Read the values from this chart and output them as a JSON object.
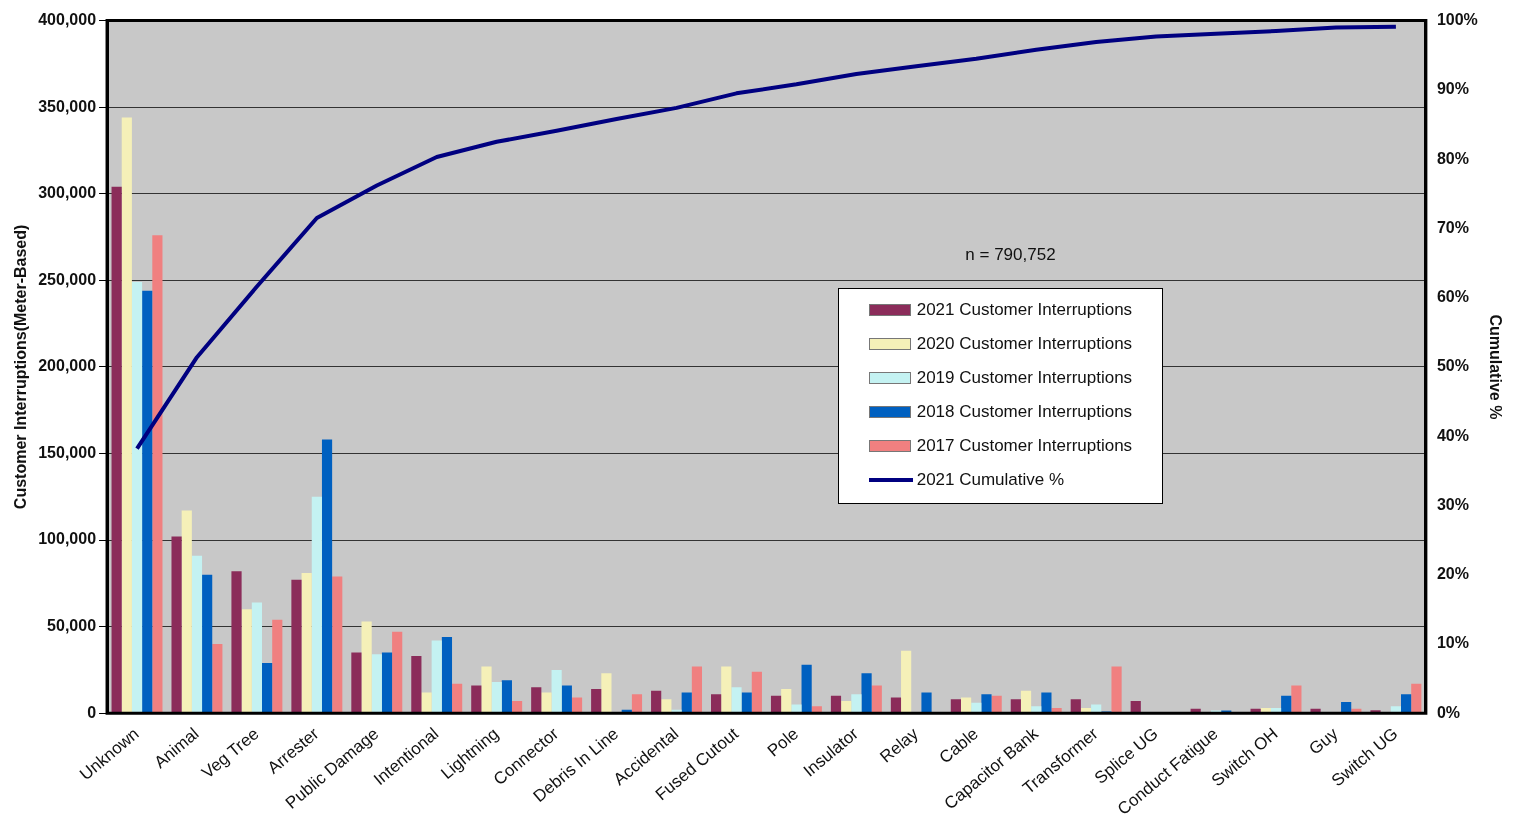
{
  "chart_data": {
    "type": "bar",
    "ylabel": "Customer Interruptions(Meter-Based)",
    "y2label": "Cumulative %",
    "categories": [
      "Unknown",
      "Animal",
      "Veg Tree",
      "Arrester",
      "Public Damage",
      "Intentional",
      "Lightning",
      "Connector",
      "Debris In Line",
      "Accidental",
      "Fused Cutout",
      "Pole",
      "Insulator",
      "Relay",
      "Cable",
      "Capacitor Bank",
      "Transformer",
      "Splice UG",
      "Conduct Fatigue",
      "Switch OH",
      "Guy",
      "Switch UG"
    ],
    "series": [
      {
        "name": "2021 Customer Interruptions",
        "color": "#8b2c5a",
        "values": [
          304000,
          102000,
          82000,
          77000,
          35000,
          33000,
          16000,
          15000,
          14000,
          13000,
          11000,
          10000,
          10000,
          9000,
          8000,
          8000,
          8000,
          7000,
          2500,
          2500,
          2500,
          1700
        ]
      },
      {
        "name": "2020 Customer Interruptions",
        "color": "#f5f0b8",
        "values": [
          344000,
          117000,
          60000,
          81000,
          53000,
          12000,
          27000,
          12000,
          23000,
          8000,
          27000,
          14000,
          7000,
          36000,
          9000,
          13000,
          3000,
          0,
          null,
          3000,
          0,
          null
        ]
      },
      {
        "name": "2019 Customer Interruptions",
        "color": "#c4f2f2",
        "values": [
          249000,
          91000,
          64000,
          125000,
          34000,
          42000,
          18000,
          25000,
          null,
          2000,
          15000,
          5000,
          11000,
          0,
          6000,
          4000,
          5000,
          0,
          1500,
          3000,
          0,
          4000
        ]
      },
      {
        "name": "2018 Customer Interruptions",
        "color": "#0060c0",
        "values": [
          244000,
          80000,
          29000,
          158000,
          35000,
          44000,
          19000,
          16000,
          2000,
          12000,
          12000,
          28000,
          23000,
          12000,
          11000,
          12000,
          1000,
          0,
          1500,
          10000,
          6500,
          11000
        ]
      },
      {
        "name": "2017 Customer Interruptions",
        "color": "#f08080",
        "values": [
          276000,
          40000,
          54000,
          79000,
          47000,
          17000,
          7000,
          9000,
          11000,
          27000,
          24000,
          4000,
          16000,
          0,
          10000,
          3000,
          27000,
          0,
          0,
          16000,
          2500,
          17000
        ]
      },
      {
        "name": "2021 Cumulative %",
        "type": "line",
        "axis": "y2",
        "color": "#000080",
        "values": [
          38.2,
          51.4,
          61.6,
          71.5,
          76.2,
          80.3,
          82.5,
          84.1,
          85.8,
          87.4,
          89.5,
          90.8,
          92.3,
          93.4,
          94.5,
          95.8,
          96.9,
          97.7,
          98.1,
          98.5,
          99.0,
          99.1
        ]
      }
    ],
    "ylim": [
      0,
      400000
    ],
    "yticks": [
      {
        "value": 0,
        "label": "0"
      },
      {
        "value": 50000,
        "label": "50,000"
      },
      {
        "value": 100000,
        "label": "100,000"
      },
      {
        "value": 150000,
        "label": "150,000"
      },
      {
        "value": 200000,
        "label": "200,000"
      },
      {
        "value": 250000,
        "label": "250,000"
      },
      {
        "value": 300000,
        "label": "300,000"
      },
      {
        "value": 350000,
        "label": "350,000"
      },
      {
        "value": 400000,
        "label": "400,000"
      }
    ],
    "y2lim": [
      0,
      100
    ],
    "y2ticks": [
      {
        "value": 0,
        "label": "0%"
      },
      {
        "value": 10,
        "label": "10%"
      },
      {
        "value": 20,
        "label": "20%"
      },
      {
        "value": 30,
        "label": "30%"
      },
      {
        "value": 40,
        "label": "40%"
      },
      {
        "value": 50,
        "label": "50%"
      },
      {
        "value": 60,
        "label": "60%"
      },
      {
        "value": 70,
        "label": "70%"
      },
      {
        "value": 80,
        "label": "80%"
      },
      {
        "value": 90,
        "label": "90%"
      },
      {
        "value": 100,
        "label": "100%"
      }
    ],
    "annotations": [
      "n = 790,752"
    ],
    "grid": "y",
    "legend": "center right",
    "marker": "none",
    "line_style": "solid"
  }
}
